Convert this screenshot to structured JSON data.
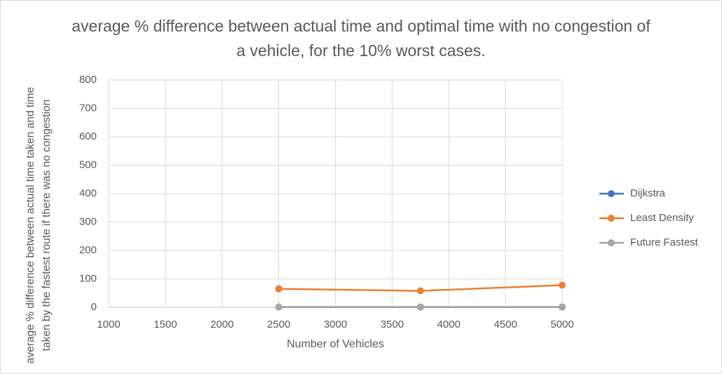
{
  "chart_data": {
    "type": "line",
    "title": "average % difference between actual time and optimal time with no congestion of a vehicle, for the 10% worst cases.",
    "x_label": "Number of Vehicles",
    "y_label": "average % difference  between actual time taken and time taken by the fastest route if there was no congestion",
    "x": [
      2500,
      3750,
      5000
    ],
    "series": [
      {
        "name": "Dijkstra",
        "color": "#4472c4",
        "values": [
          1,
          1,
          1
        ]
      },
      {
        "name": "Least Density",
        "color": "#ed7d31",
        "values": [
          65,
          58,
          78
        ]
      },
      {
        "name": "Future Fastest",
        "color": "#a5a5a5",
        "values": [
          1,
          1,
          1
        ]
      }
    ],
    "xlim": [
      1000,
      5000
    ],
    "xticks": [
      1000,
      1500,
      2000,
      2500,
      3000,
      3500,
      4000,
      4500,
      5000
    ],
    "ylim": [
      0,
      800
    ],
    "yticks": [
      0,
      100,
      200,
      300,
      400,
      500,
      600,
      700,
      800
    ],
    "grid": true,
    "legend": "right"
  }
}
